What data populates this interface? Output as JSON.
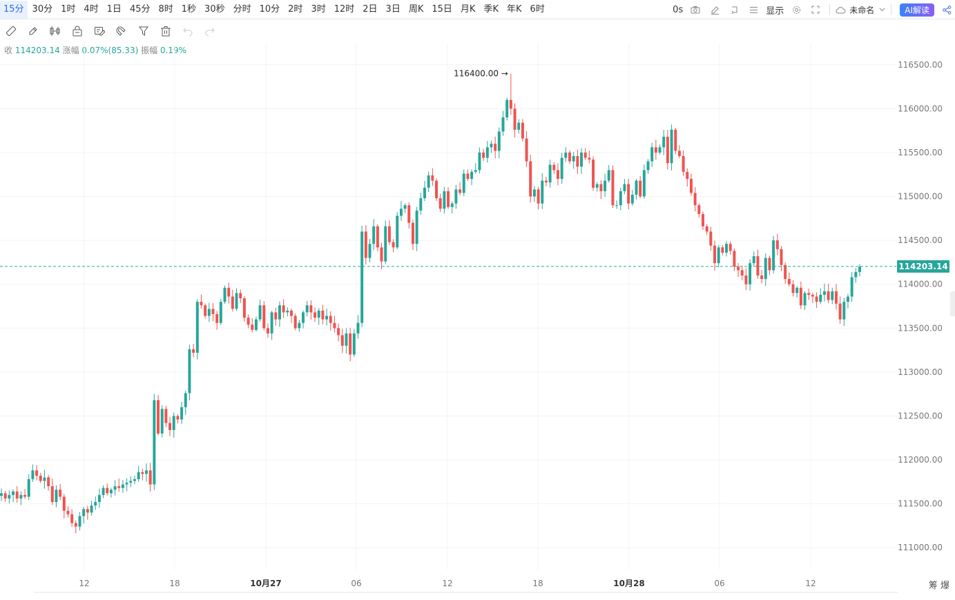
{
  "timeframes": [
    "15分",
    "30分",
    "1时",
    "4时",
    "1日",
    "45分",
    "8时",
    "1秒",
    "30秒",
    "分时",
    "10分",
    "2时",
    "3时",
    "12时",
    "2日",
    "3日",
    "周K",
    "15日",
    "月K",
    "季K",
    "年K",
    "6时"
  ],
  "active_timeframe_index": 0,
  "top_right": {
    "seconds_label": "0s",
    "display_label": "显示",
    "layout_name": "未命名",
    "ai_label": "AI解读"
  },
  "status": {
    "close_label": "收",
    "close_value": "114203.14",
    "change_label": "涨幅",
    "change_value": "0.07%(85.33)",
    "amp_label": "振幅",
    "amp_value": "0.19%"
  },
  "colors": {
    "up": "#26a69a",
    "down": "#ef5350",
    "grid": "#f3f3f3",
    "last_price": "#26a69a"
  },
  "corner_label": "筹  爆",
  "chart_data": {
    "type": "candlestick",
    "y_axis": {
      "min": 110750,
      "max": 116750,
      "ticks": [
        "111000.00",
        "111500.00",
        "112000.00",
        "112500.00",
        "113000.00",
        "113500.00",
        "114000.00",
        "114500.00",
        "115000.00",
        "115500.00",
        "116000.00",
        "116500.00"
      ]
    },
    "x_axis": {
      "ticks": [
        "12",
        "18",
        "10月27",
        "06",
        "12",
        "18",
        "10月28",
        "06",
        "12"
      ]
    },
    "last_price": "114203.14",
    "high_annotation": "116400.00",
    "closes": [
      111620,
      111560,
      111600,
      111640,
      111560,
      111600,
      111580,
      111780,
      111880,
      111820,
      111760,
      111800,
      111700,
      111520,
      111660,
      111580,
      111420,
      111380,
      111280,
      111240,
      111360,
      111440,
      111400,
      111480,
      111520,
      111600,
      111680,
      111620,
      111660,
      111700,
      111680,
      111720,
      111740,
      111760,
      111780,
      111860,
      111840,
      111880,
      111720,
      112680,
      112300,
      112580,
      112420,
      112340,
      112500,
      112460,
      112600,
      112760,
      113260,
      113220,
      113800,
      113760,
      113640,
      113720,
      113660,
      113560,
      113800,
      113960,
      113860,
      113720,
      113900,
      113840,
      113620,
      113540,
      113480,
      113600,
      113760,
      113500,
      113440,
      113680,
      113600,
      113760,
      113680,
      113700,
      113640,
      113500,
      113560,
      113680,
      113760,
      113680,
      113620,
      113700,
      113600,
      113640,
      113560,
      113500,
      113420,
      113300,
      113440,
      113200,
      113440,
      113560,
      114600,
      114300,
      114460,
      114660,
      114420,
      114260,
      114660,
      114480,
      114420,
      114780,
      114860,
      114900,
      114700,
      114460,
      114840,
      114980,
      115100,
      115240,
      115180,
      114980,
      114860,
      115060,
      114880,
      114920,
      115080,
      115040,
      115260,
      115200,
      115280,
      115300,
      115500,
      115440,
      115560,
      115600,
      115520,
      115740,
      115900,
      116100,
      116000,
      115760,
      115840,
      115660,
      115400,
      115000,
      115080,
      114920,
      115180,
      115160,
      115360,
      115300,
      115200,
      115440,
      115500,
      115400,
      115460,
      115340,
      115500,
      115440,
      115420,
      115100,
      115140,
      115060,
      115180,
      115300,
      114900,
      114900,
      115060,
      115140,
      114920,
      115020,
      115180,
      115000,
      115300,
      115400,
      115560,
      115500,
      115560,
      115680,
      115380,
      115760,
      115520,
      115460,
      115280,
      115200,
      115040,
      114900,
      114800,
      114660,
      114600,
      114440,
      114240,
      114420,
      114360,
      114460,
      114380,
      114200,
      114160,
      114100,
      114000,
      114240,
      114320,
      114100,
      114060,
      114300,
      114160,
      114500,
      114400,
      114220,
      114060,
      114000,
      113900,
      113960,
      113760,
      113900,
      113880,
      113860,
      113800,
      113880,
      113920,
      113820,
      113920,
      113780,
      113600,
      113800,
      113860,
      114080,
      114140,
      114200
    ]
  }
}
